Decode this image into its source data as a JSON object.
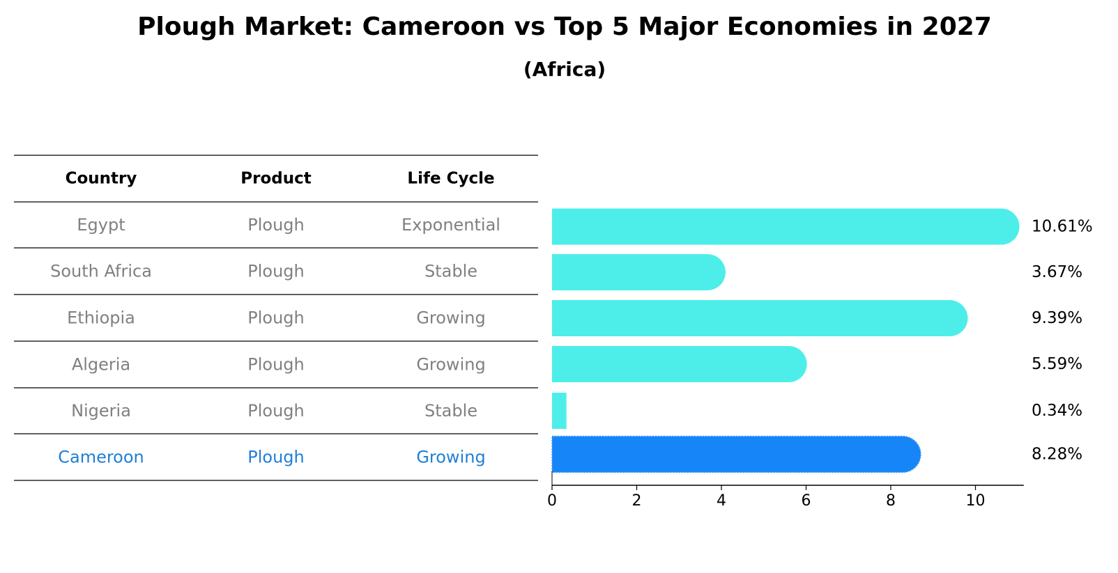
{
  "chart_data": {
    "type": "bar",
    "orientation": "horizontal",
    "title": "Plough Market: Cameroon vs Top 5 Major Economies in 2027",
    "subtitle": "(Africa)",
    "table": {
      "columns": [
        "Country",
        "Product",
        "Life Cycle"
      ],
      "rows": [
        {
          "country": "Egypt",
          "product": "Plough",
          "life_cycle": "Exponential",
          "highlight": false
        },
        {
          "country": "South Africa",
          "product": "Plough",
          "life_cycle": "Stable",
          "highlight": false
        },
        {
          "country": "Ethiopia",
          "product": "Plough",
          "life_cycle": "Growing",
          "highlight": false
        },
        {
          "country": "Algeria",
          "product": "Plough",
          "life_cycle": "Growing",
          "highlight": false
        },
        {
          "country": "Nigeria",
          "product": "Plough",
          "life_cycle": "Stable",
          "highlight": false
        },
        {
          "country": "Cameroon",
          "product": "Plough",
          "life_cycle": "Growing",
          "highlight": true
        }
      ]
    },
    "categories": [
      "Egypt",
      "South Africa",
      "Ethiopia",
      "Algeria",
      "Nigeria",
      "Cameroon"
    ],
    "values": [
      10.61,
      3.67,
      9.39,
      5.59,
      0.34,
      8.28
    ],
    "value_labels": [
      "10.61%",
      "3.67%",
      "9.39%",
      "5.59%",
      "0.34%",
      "8.28%"
    ],
    "xlim": [
      0,
      11.14
    ],
    "xticks": [
      0,
      2,
      4,
      6,
      8,
      10
    ],
    "grid": false,
    "colors": {
      "bar": "#4DEEEA",
      "highlight_bar": "#1685F7",
      "muted_text": "#808080",
      "highlight_text": "#1F7FD6",
      "rule": "#000000"
    }
  }
}
